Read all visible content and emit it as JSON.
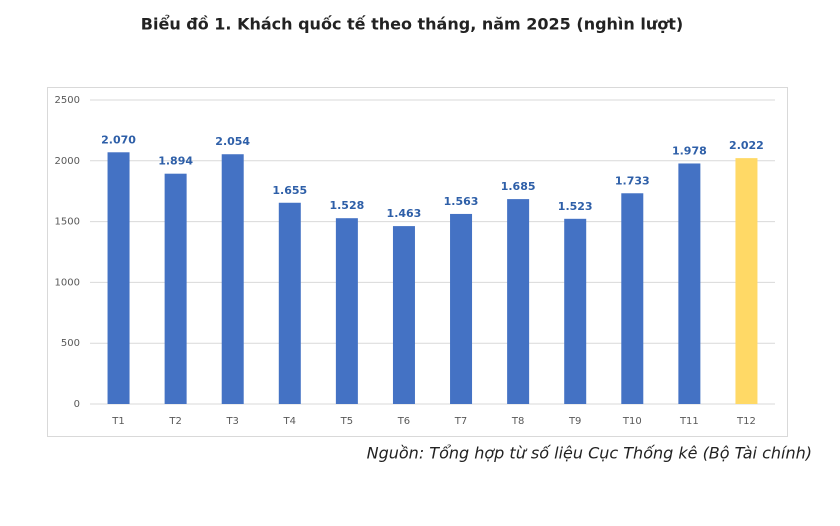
{
  "chart_data": {
    "type": "bar",
    "title": "Biểu đồ 1. Khách quốc tế theo tháng, năm 2025 (nghìn lượt)",
    "categories": [
      "T1",
      "T2",
      "T3",
      "T4",
      "T5",
      "T6",
      "T7",
      "T8",
      "T9",
      "T10",
      "T11",
      "T12"
    ],
    "values": [
      2070,
      1894,
      2054,
      1655,
      1528,
      1463,
      1563,
      1685,
      1523,
      1733,
      1978,
      2022
    ],
    "value_labels": [
      "2.070",
      "1.894",
      "2.054",
      "1.655",
      "1.528",
      "1.463",
      "1.563",
      "1.685",
      "1.523",
      "1.733",
      "1.978",
      "2.022"
    ],
    "colors": [
      "#4472c4",
      "#4472c4",
      "#4472c4",
      "#4472c4",
      "#4472c4",
      "#4472c4",
      "#4472c4",
      "#4472c4",
      "#4472c4",
      "#4472c4",
      "#4472c4",
      "#ffd966"
    ],
    "ylim": [
      0,
      2500
    ],
    "yticks": [
      0,
      500,
      1000,
      1500,
      2000,
      2500
    ],
    "grid": true,
    "source": "Nguồn: Tổng hợp từ số liệu Cục Thống kê (Bộ Tài chính)"
  }
}
